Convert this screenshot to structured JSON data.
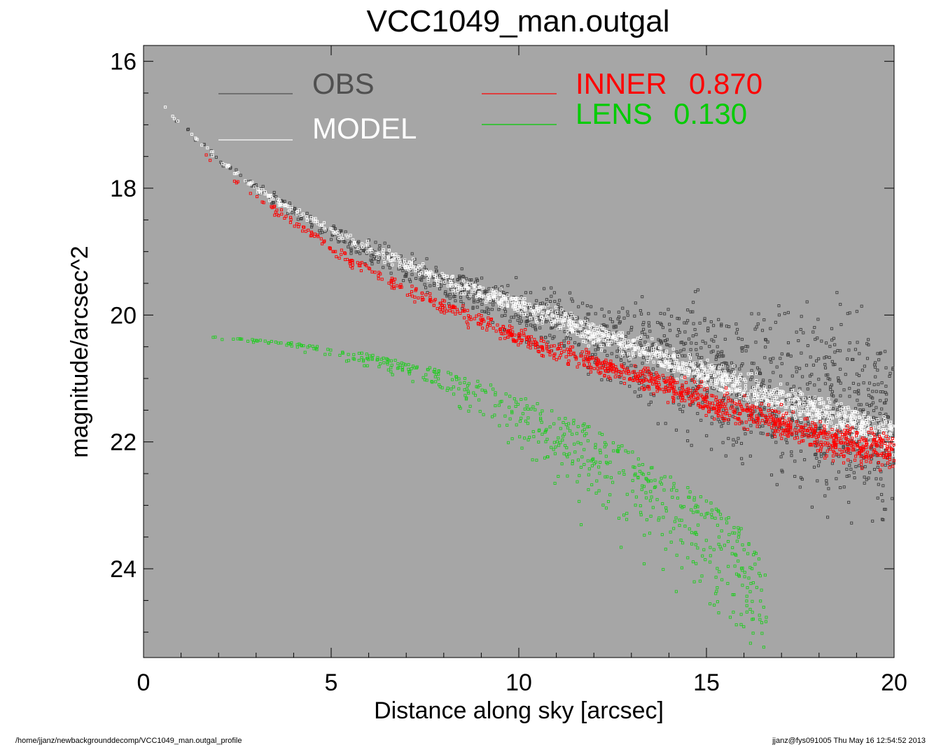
{
  "chart_data": {
    "type": "scatter",
    "title": "VCC1049_man.outgal",
    "xlabel": "Distance along sky [arcsec]",
    "ylabel": "magnitude/arcsec^2",
    "xlim": [
      0,
      20
    ],
    "ylim": [
      25.4,
      15.75
    ],
    "y_inverted": true,
    "x_ticks": [
      "0",
      "5",
      "10",
      "15",
      "20"
    ],
    "y_ticks": [
      "16",
      "18",
      "20",
      "22",
      "24"
    ],
    "background_color": "#a6a6a6",
    "grid": false,
    "legend": [
      {
        "label": "OBS",
        "value": "",
        "color": "#505050"
      },
      {
        "label": "MODEL",
        "value": "",
        "color": "#ffffff"
      },
      {
        "label": "INNER",
        "value": "0.870",
        "color": "#ff0000"
      },
      {
        "label": "LENS",
        "value": "0.130",
        "color": "#00cc00"
      }
    ],
    "series": [
      {
        "name": "OBS",
        "color": "#404040",
        "x": [
          0.3,
          1,
          2,
          3,
          4,
          5,
          6,
          7,
          8,
          9,
          10,
          11,
          12,
          13,
          14,
          15,
          16,
          17,
          18,
          19,
          20
        ],
        "y": [
          16.55,
          17.0,
          17.55,
          18.0,
          18.35,
          18.7,
          19.0,
          19.25,
          19.5,
          19.7,
          19.9,
          20.1,
          20.3,
          20.5,
          20.7,
          20.9,
          21.1,
          21.3,
          21.5,
          21.6,
          21.7
        ],
        "spread": [
          0.05,
          0.06,
          0.08,
          0.12,
          0.2,
          0.25,
          0.3,
          0.35,
          0.4,
          0.5,
          0.6,
          0.75,
          0.9,
          1.1,
          1.3,
          1.5,
          1.7,
          1.9,
          2.1,
          2.3,
          2.5
        ]
      },
      {
        "name": "MODEL",
        "color": "#ffffff",
        "x": [
          0.3,
          1,
          2,
          3,
          4,
          5,
          6,
          7,
          8,
          9,
          10,
          11,
          12,
          13,
          14,
          15,
          16,
          17,
          18,
          19,
          20
        ],
        "y": [
          16.55,
          17.0,
          17.55,
          18.0,
          18.35,
          18.65,
          18.95,
          19.2,
          19.45,
          19.65,
          19.85,
          20.05,
          20.3,
          20.5,
          20.7,
          20.95,
          21.15,
          21.35,
          21.55,
          21.75,
          21.95
        ],
        "spread": [
          0.03,
          0.04,
          0.06,
          0.08,
          0.1,
          0.12,
          0.14,
          0.16,
          0.18,
          0.2,
          0.22,
          0.24,
          0.26,
          0.28,
          0.3,
          0.32,
          0.34,
          0.36,
          0.38,
          0.4,
          0.42
        ]
      },
      {
        "name": "INNER",
        "color": "#ff0000",
        "x": [
          1.5,
          2,
          3,
          4,
          5,
          6,
          7,
          8,
          9,
          10,
          11,
          12,
          13,
          14,
          15,
          16,
          17,
          18,
          19,
          20
        ],
        "y": [
          17.4,
          17.65,
          18.15,
          18.55,
          18.95,
          19.3,
          19.6,
          19.85,
          20.1,
          20.35,
          20.55,
          20.75,
          20.95,
          21.15,
          21.35,
          21.55,
          21.75,
          21.95,
          22.05,
          22.15
        ],
        "spread": [
          0.04,
          0.06,
          0.08,
          0.1,
          0.12,
          0.14,
          0.16,
          0.18,
          0.2,
          0.22,
          0.24,
          0.26,
          0.28,
          0.3,
          0.32,
          0.34,
          0.36,
          0.38,
          0.4,
          0.42
        ]
      },
      {
        "name": "LENS",
        "color": "#22cc22",
        "x": [
          0.4,
          1,
          2,
          3,
          4,
          5,
          6,
          7,
          8,
          9,
          10,
          11,
          12,
          13,
          14,
          15,
          16,
          16.6
        ],
        "y": [
          20.3,
          20.32,
          20.35,
          20.4,
          20.45,
          20.55,
          20.65,
          20.8,
          20.95,
          21.15,
          21.4,
          21.7,
          22.0,
          22.4,
          22.8,
          23.2,
          23.7,
          24.3
        ],
        "spread": [
          0.02,
          0.03,
          0.04,
          0.06,
          0.1,
          0.15,
          0.25,
          0.35,
          0.5,
          0.7,
          0.9,
          1.2,
          1.5,
          1.7,
          1.9,
          2.0,
          2.1,
          2.2
        ]
      }
    ]
  },
  "footer": {
    "left": "/home/jjanz/newbackgrounddecomp/VCC1049_man.outgal_profile",
    "right": "jjanz@fys091005  Thu May 16 12:54:52 2013"
  }
}
